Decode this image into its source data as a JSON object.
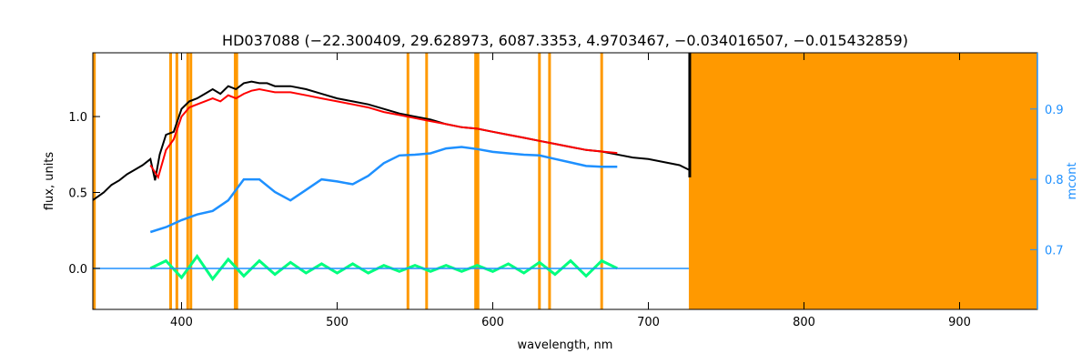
{
  "chart_data": {
    "type": "line",
    "title": "HD037088   (−22.300409, 29.628973, 6087.3353, 4.9703467, −0.034016507, −0.015432859)",
    "xlabel": "wavelength, nm",
    "ylabel": "flux, units",
    "ylabel_right": "mcont",
    "xlim": [
      343,
      950
    ],
    "ylim": [
      -0.27,
      1.42
    ],
    "ylim_right": [
      0.615,
      0.98
    ],
    "x_ticks": [
      400,
      500,
      600,
      700,
      800,
      900
    ],
    "x_tick_labels": [
      "400",
      "500",
      "600",
      "700",
      "800",
      "900"
    ],
    "y_ticks": [
      0.0,
      0.5,
      1.0
    ],
    "y_tick_labels": [
      "0.0",
      "0.5",
      "1.0"
    ],
    "y_right_ticks": [
      0.7,
      0.8,
      0.9
    ],
    "y_right_tick_labels": [
      "0.7",
      "0.8",
      "0.9"
    ],
    "grid": false,
    "masked_lines_nm": [
      344,
      393,
      397,
      404,
      406,
      434.5,
      435.5,
      545.5,
      557.5,
      589,
      589.8,
      590.5,
      630,
      636.5,
      670
    ],
    "masked_region_nm": [
      726,
      950
    ],
    "colors": {
      "observed": "#000000",
      "model": "#ff0000",
      "continuum": "#1e90ff",
      "residuals": "#00ff7f",
      "mask": "#ff9900",
      "right_axis": "#1e90ff"
    },
    "series": [
      {
        "key": "observed",
        "x": [
          343,
          350,
          355,
          360,
          365,
          370,
          375,
          380,
          383,
          386,
          390,
          395,
          400,
          405,
          410,
          415,
          420,
          425,
          430,
          435,
          440,
          445,
          450,
          455,
          460,
          470,
          480,
          490,
          500,
          510,
          520,
          530,
          540,
          550,
          560,
          570,
          580,
          590,
          600,
          610,
          620,
          630,
          640,
          650,
          660,
          670,
          680,
          690,
          700,
          710,
          720,
          726
        ],
        "y": [
          0.45,
          0.5,
          0.55,
          0.58,
          0.62,
          0.65,
          0.68,
          0.72,
          0.58,
          0.75,
          0.88,
          0.9,
          1.05,
          1.1,
          1.12,
          1.15,
          1.18,
          1.15,
          1.2,
          1.18,
          1.22,
          1.23,
          1.22,
          1.22,
          1.2,
          1.2,
          1.18,
          1.15,
          1.12,
          1.1,
          1.08,
          1.05,
          1.02,
          1.0,
          0.98,
          0.95,
          0.93,
          0.92,
          0.9,
          0.88,
          0.86,
          0.84,
          0.82,
          0.8,
          0.78,
          0.77,
          0.75,
          0.73,
          0.72,
          0.7,
          0.68,
          0.65
        ]
      },
      {
        "key": "model",
        "x": [
          380,
          385,
          390,
          395,
          400,
          405,
          410,
          415,
          420,
          425,
          430,
          435,
          440,
          445,
          450,
          455,
          460,
          470,
          480,
          490,
          500,
          510,
          520,
          530,
          540,
          550,
          560,
          570,
          580,
          590,
          600,
          610,
          620,
          630,
          640,
          650,
          660,
          670,
          680
        ],
        "y": [
          0.68,
          0.6,
          0.78,
          0.85,
          1.0,
          1.06,
          1.08,
          1.1,
          1.12,
          1.1,
          1.14,
          1.12,
          1.15,
          1.17,
          1.18,
          1.17,
          1.16,
          1.16,
          1.14,
          1.12,
          1.1,
          1.08,
          1.06,
          1.03,
          1.01,
          0.99,
          0.97,
          0.95,
          0.93,
          0.92,
          0.9,
          0.88,
          0.86,
          0.84,
          0.82,
          0.8,
          0.78,
          0.77,
          0.76
        ]
      },
      {
        "key": "continuum",
        "x": [
          380,
          390,
          400,
          410,
          420,
          430,
          440,
          450,
          460,
          470,
          480,
          490,
          500,
          510,
          520,
          530,
          540,
          550,
          560,
          570,
          580,
          590,
          600,
          610,
          620,
          630,
          640,
          650,
          660,
          670,
          680
        ],
        "y": [
          0.725,
          0.732,
          0.742,
          0.75,
          0.755,
          0.77,
          0.8,
          0.8,
          0.782,
          0.77,
          0.785,
          0.8,
          0.797,
          0.793,
          0.805,
          0.823,
          0.834,
          0.835,
          0.837,
          0.844,
          0.846,
          0.843,
          0.839,
          0.837,
          0.835,
          0.834,
          0.829,
          0.824,
          0.819,
          0.818,
          0.818
        ]
      },
      {
        "key": "residuals",
        "x": [
          380,
          390,
          400,
          410,
          420,
          430,
          440,
          450,
          460,
          470,
          480,
          490,
          500,
          510,
          520,
          530,
          540,
          550,
          560,
          570,
          580,
          590,
          600,
          610,
          620,
          630,
          640,
          650,
          660,
          670,
          680
        ],
        "y": [
          0.0,
          0.05,
          -0.06,
          0.08,
          -0.07,
          0.06,
          -0.05,
          0.05,
          -0.04,
          0.04,
          -0.03,
          0.03,
          -0.03,
          0.03,
          -0.03,
          0.02,
          -0.02,
          0.02,
          -0.02,
          0.02,
          -0.02,
          0.02,
          -0.02,
          0.03,
          -0.03,
          0.04,
          -0.04,
          0.05,
          -0.05,
          0.05,
          0.0
        ]
      }
    ]
  }
}
